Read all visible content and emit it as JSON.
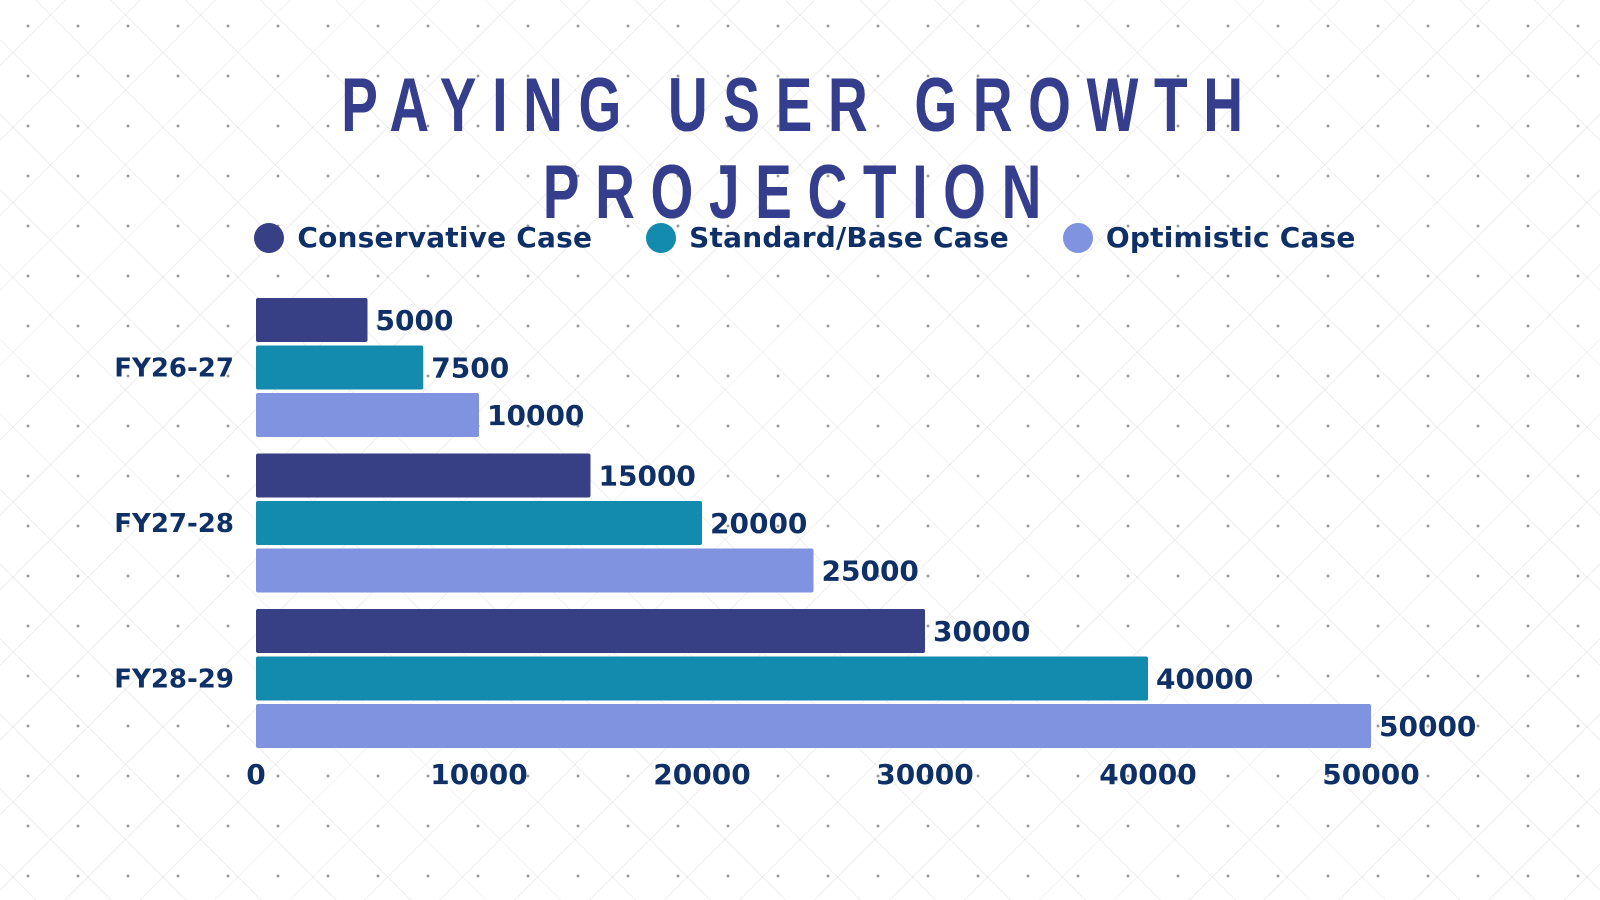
{
  "chart_data": {
    "type": "bar",
    "orientation": "horizontal",
    "title": "PAYING USER GROWTH PROJECTION",
    "xlabel": "",
    "ylabel": "",
    "categories": [
      "FY26-27",
      "FY27-28",
      "FY28-29"
    ],
    "series": [
      {
        "name": "Conservative Case",
        "color": "#373f85",
        "values": [
          5000,
          15000,
          30000
        ]
      },
      {
        "name": "Standard/Base Case",
        "color": "#138baf",
        "values": [
          7500,
          20000,
          40000
        ]
      },
      {
        "name": "Optimistic Case",
        "color": "#7f93e0",
        "values": [
          10000,
          25000,
          50000
        ]
      }
    ],
    "xlim": [
      0,
      50000
    ],
    "xticks": [
      0,
      10000,
      20000,
      30000,
      40000,
      50000
    ],
    "xtick_labels": [
      "0",
      "10000",
      "20000",
      "30000",
      "40000",
      "50000"
    ],
    "data_labels": true,
    "grid": false,
    "legend_position": "top-center"
  },
  "text_color": "#0f3067",
  "title_color": "#343e8c"
}
